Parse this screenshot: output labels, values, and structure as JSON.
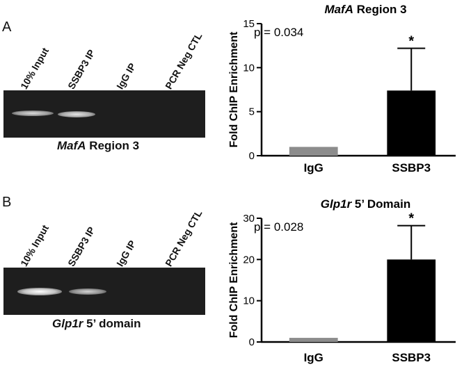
{
  "panels": [
    {
      "letter": "A",
      "gel": {
        "lanes": [
          "10% Input",
          "SSBP3 IP",
          "IgG IP",
          "PCR Neg CTL"
        ],
        "caption_gene": "MafA",
        "caption_rest": " Region 3"
      }
    },
    {
      "letter": "B",
      "gel": {
        "lanes": [
          "10% Input",
          "SSBP3 IP",
          "IgG IP",
          "PCR Neg CTL"
        ],
        "caption_gene": "Glp1r",
        "caption_rest": " 5’ domain"
      }
    }
  ],
  "chart_data": [
    {
      "type": "bar",
      "title_gene": "MafA",
      "title_rest": " Region 3",
      "ylabel": "Fold ChIP Enrichment",
      "categories": [
        "IgG",
        "SSBP3"
      ],
      "values": [
        1,
        7.4
      ],
      "errors": [
        0,
        4.8
      ],
      "significance": [
        "",
        "*"
      ],
      "annotation": "p = 0.034",
      "ylim": [
        0,
        15
      ],
      "yticks": [
        0,
        5,
        10,
        15
      ],
      "colors": [
        "#8c8c8c",
        "#000000"
      ]
    },
    {
      "type": "bar",
      "title_gene": "Glp1r",
      "title_rest": " 5’ Domain",
      "ylabel": "Fold ChIP Enrichment",
      "categories": [
        "IgG",
        "SSBP3"
      ],
      "values": [
        1,
        20
      ],
      "errors": [
        0,
        8.2
      ],
      "significance": [
        "",
        "*"
      ],
      "annotation": "p = 0.028",
      "ylim": [
        0,
        30
      ],
      "yticks": [
        0,
        10,
        20,
        30
      ],
      "colors": [
        "#8c8c8c",
        "#000000"
      ]
    }
  ]
}
